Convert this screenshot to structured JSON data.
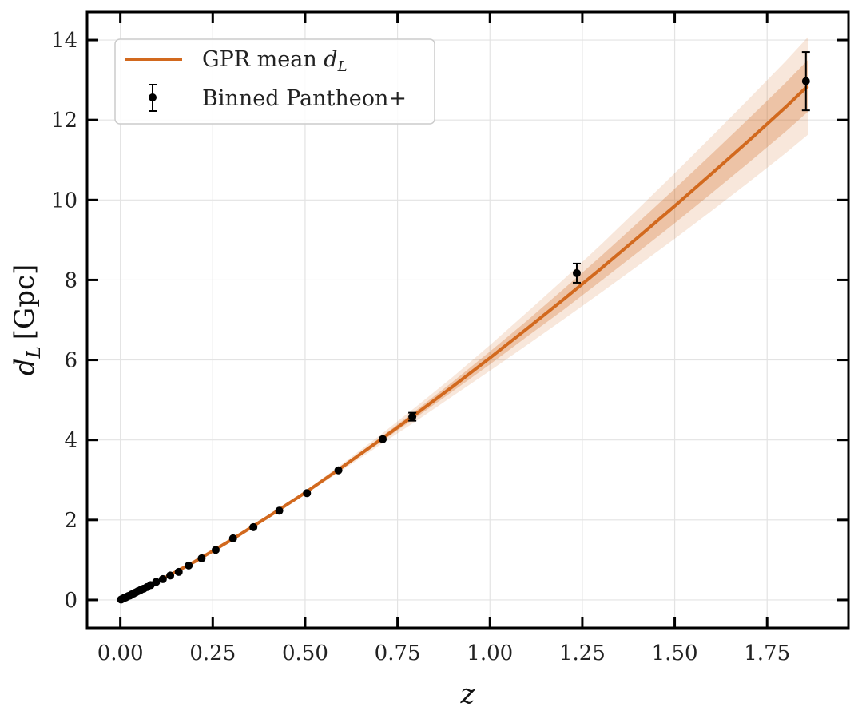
{
  "chart_data": {
    "type": "scatter",
    "xlabel_main": "z",
    "ylabel_main": "d",
    "ylabel_sub": "L",
    "ylabel_unit": "[Gpc]",
    "xlim": [
      -0.09,
      1.97
    ],
    "ylim": [
      -0.7,
      14.7
    ],
    "xticks": [
      0.0,
      0.25,
      0.5,
      0.75,
      1.0,
      1.25,
      1.5,
      1.75
    ],
    "xtick_labels": [
      "0.00",
      "0.25",
      "0.50",
      "0.75",
      "1.00",
      "1.25",
      "1.50",
      "1.75"
    ],
    "yticks": [
      0,
      2,
      4,
      6,
      8,
      10,
      12,
      14
    ],
    "ytick_labels": [
      "0",
      "2",
      "4",
      "6",
      "8",
      "10",
      "12",
      "14"
    ],
    "grid": true,
    "legend": {
      "position": "top-left",
      "entries": [
        {
          "label_main": "GPR mean ",
          "label_var": "d",
          "label_sub": "L",
          "marker": "line"
        },
        {
          "label_main": "Binned Pantheon+",
          "label_var": "",
          "label_sub": "",
          "marker": "errorbar"
        }
      ]
    },
    "series": [
      {
        "name": "GPR mean d_L",
        "kind": "line",
        "color": "#d2691e",
        "x": [
          0.0,
          0.1,
          0.2,
          0.3,
          0.4,
          0.5,
          0.6,
          0.7,
          0.8,
          0.9,
          1.0,
          1.1,
          1.2,
          1.3,
          1.4,
          1.5,
          1.6,
          1.7,
          1.8,
          1.86
        ],
        "y": [
          0.0,
          0.45,
          0.95,
          1.5,
          2.08,
          2.68,
          3.32,
          3.98,
          4.65,
          5.34,
          6.05,
          6.78,
          7.52,
          8.28,
          9.06,
          9.85,
          10.66,
          11.48,
          12.32,
          12.85
        ],
        "band1_halfwidth": [
          0.0,
          0.0,
          0.0,
          0.0,
          0.0,
          0.02,
          0.04,
          0.06,
          0.09,
          0.12,
          0.16,
          0.2,
          0.26,
          0.31,
          0.37,
          0.43,
          0.49,
          0.55,
          0.61,
          0.65
        ],
        "band2_halfwidth": [
          0.0,
          0.0,
          0.0,
          0.0,
          0.01,
          0.04,
          0.08,
          0.12,
          0.18,
          0.24,
          0.32,
          0.41,
          0.5,
          0.6,
          0.71,
          0.82,
          0.93,
          1.04,
          1.15,
          1.22
        ]
      },
      {
        "name": "Binned Pantheon+",
        "kind": "errorbar",
        "color": "#000000",
        "x": [
          0.002,
          0.006,
          0.01,
          0.014,
          0.018,
          0.022,
          0.026,
          0.031,
          0.036,
          0.042,
          0.048,
          0.055,
          0.063,
          0.072,
          0.082,
          0.097,
          0.115,
          0.135,
          0.158,
          0.185,
          0.22,
          0.258,
          0.305,
          0.36,
          0.43,
          0.505,
          0.59,
          0.71,
          0.79,
          1.235,
          1.855
        ],
        "y": [
          0.01,
          0.03,
          0.05,
          0.06,
          0.08,
          0.1,
          0.11,
          0.14,
          0.16,
          0.19,
          0.22,
          0.25,
          0.28,
          0.32,
          0.37,
          0.45,
          0.52,
          0.61,
          0.7,
          0.86,
          1.04,
          1.25,
          1.54,
          1.82,
          2.23,
          2.67,
          3.24,
          4.02,
          4.58,
          8.17,
          12.97
        ],
        "yerr": [
          0,
          0,
          0,
          0,
          0,
          0,
          0,
          0,
          0,
          0,
          0,
          0,
          0,
          0,
          0,
          0,
          0,
          0,
          0,
          0,
          0,
          0,
          0,
          0,
          0,
          0,
          0,
          0,
          0.1,
          0.24,
          0.73
        ]
      }
    ]
  }
}
